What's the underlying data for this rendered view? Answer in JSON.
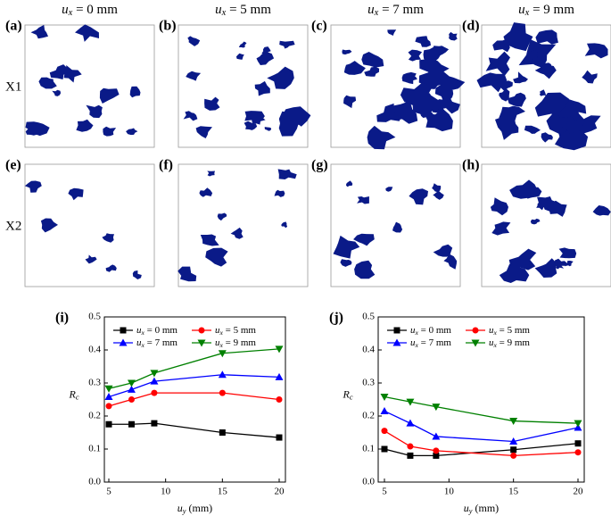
{
  "panels": [
    {
      "label": "(a)",
      "title": "ux = 0 mm"
    },
    {
      "label": "(b)",
      "title": "ux = 5 mm"
    },
    {
      "label": "(c)",
      "title": "ux = 7 mm"
    },
    {
      "label": "(d)",
      "title": "ux = 9 mm"
    },
    {
      "label": "(e)"
    },
    {
      "label": "(f)"
    },
    {
      "label": "(g)"
    },
    {
      "label": "(h)"
    }
  ],
  "rows": [
    "X1",
    "X2"
  ],
  "chart_data": [
    {
      "type": "line",
      "panel_label": "(i)",
      "x_label": "uy (mm)",
      "y_label": "Rc",
      "x": [
        5,
        7,
        9,
        15,
        20
      ],
      "xlim": [
        5,
        20
      ],
      "xticks": [
        5,
        10,
        15,
        20
      ],
      "ylim": [
        0,
        0.5
      ],
      "yticks": [
        0.0,
        0.1,
        0.2,
        0.3,
        0.4,
        0.5
      ],
      "ytick_labels": [
        "0.0",
        "0.1",
        "0.2",
        "0.3",
        "0.4",
        "0.5"
      ],
      "series": [
        {
          "name": "ux = 0 mm",
          "color": "#000000",
          "marker": "square",
          "values": [
            0.175,
            0.175,
            0.178,
            0.15,
            0.135
          ]
        },
        {
          "name": "ux = 5 mm",
          "color": "#ff0000",
          "marker": "circle",
          "values": [
            0.23,
            0.25,
            0.27,
            0.27,
            0.25
          ]
        },
        {
          "name": "ux = 7 mm",
          "color": "#0000ff",
          "marker": "triangle-up",
          "values": [
            0.258,
            0.28,
            0.305,
            0.325,
            0.318
          ]
        },
        {
          "name": "ux = 9 mm",
          "color": "#008000",
          "marker": "triangle-down",
          "values": [
            0.283,
            0.3,
            0.33,
            0.39,
            0.403
          ]
        }
      ]
    },
    {
      "type": "line",
      "panel_label": "(j)",
      "x_label": "uy (mm)",
      "y_label": "Rc",
      "x": [
        5,
        7,
        9,
        15,
        20
      ],
      "xlim": [
        5,
        20
      ],
      "xticks": [
        5,
        10,
        15,
        20
      ],
      "ylim": [
        0,
        0.5
      ],
      "yticks": [
        0.0,
        0.1,
        0.2,
        0.3,
        0.4,
        0.5
      ],
      "ytick_labels": [
        "0.0",
        "0.1",
        "0.2",
        "0.3",
        "0.4",
        "0.5"
      ],
      "series": [
        {
          "name": "ux = 0 mm",
          "color": "#000000",
          "marker": "square",
          "values": [
            0.1,
            0.08,
            0.08,
            0.098,
            0.117
          ]
        },
        {
          "name": "ux = 5 mm",
          "color": "#ff0000",
          "marker": "circle",
          "values": [
            0.155,
            0.108,
            0.095,
            0.08,
            0.09
          ]
        },
        {
          "name": "ux = 7 mm",
          "color": "#0000ff",
          "marker": "triangle-up",
          "values": [
            0.215,
            0.178,
            0.138,
            0.123,
            0.165
          ]
        },
        {
          "name": "ux = 9 mm",
          "color": "#008000",
          "marker": "triangle-down",
          "values": [
            0.258,
            0.243,
            0.228,
            0.185,
            0.178
          ]
        }
      ]
    }
  ]
}
